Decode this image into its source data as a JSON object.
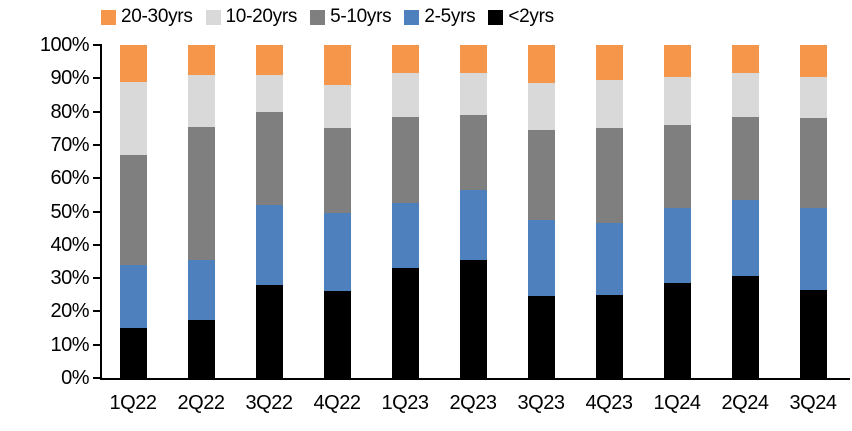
{
  "chart_data": {
    "type": "bar",
    "stacked": true,
    "stacked_unit": "percent",
    "title": "",
    "xlabel": "",
    "ylabel": "",
    "grid": false,
    "categories": [
      "1Q22",
      "2Q22",
      "3Q22",
      "4Q22",
      "1Q23",
      "2Q23",
      "3Q23",
      "4Q23",
      "1Q24",
      "2Q24",
      "3Q24"
    ],
    "series": [
      {
        "name": "<2yrs",
        "color": "#000000",
        "values": [
          15,
          17.5,
          28,
          26,
          33,
          35.5,
          24.5,
          25,
          28.5,
          30.5,
          26.5
        ]
      },
      {
        "name": "2-5yrs",
        "color": "#4E80BD",
        "values": [
          19,
          18,
          24,
          23.5,
          19.5,
          21,
          23,
          21.5,
          22.5,
          23,
          24.5
        ]
      },
      {
        "name": "5-10yrs",
        "color": "#7F7F7F",
        "values": [
          33,
          40,
          28,
          25.5,
          26,
          22.5,
          27,
          28.5,
          25,
          25,
          27
        ]
      },
      {
        "name": "10-20yrs",
        "color": "#D9D9D9",
        "values": [
          22,
          15.5,
          11,
          13,
          13,
          12.5,
          14,
          14.5,
          14.5,
          13,
          12.5
        ]
      },
      {
        "name": "20-30yrs",
        "color": "#F5964B",
        "values": [
          11,
          9,
          9,
          12,
          8.5,
          8.5,
          11.5,
          10.5,
          9.5,
          8.5,
          9.5
        ]
      }
    ],
    "legend": {
      "position": "top",
      "order": [
        "20-30yrs",
        "10-20yrs",
        "5-10yrs",
        "2-5yrs",
        "<2yrs"
      ]
    },
    "y_axis": {
      "min": 0,
      "max": 100,
      "tick_step": 10,
      "tick_labels": [
        "0%",
        "10%",
        "20%",
        "30%",
        "40%",
        "50%",
        "60%",
        "70%",
        "80%",
        "90%",
        "100%"
      ]
    }
  }
}
